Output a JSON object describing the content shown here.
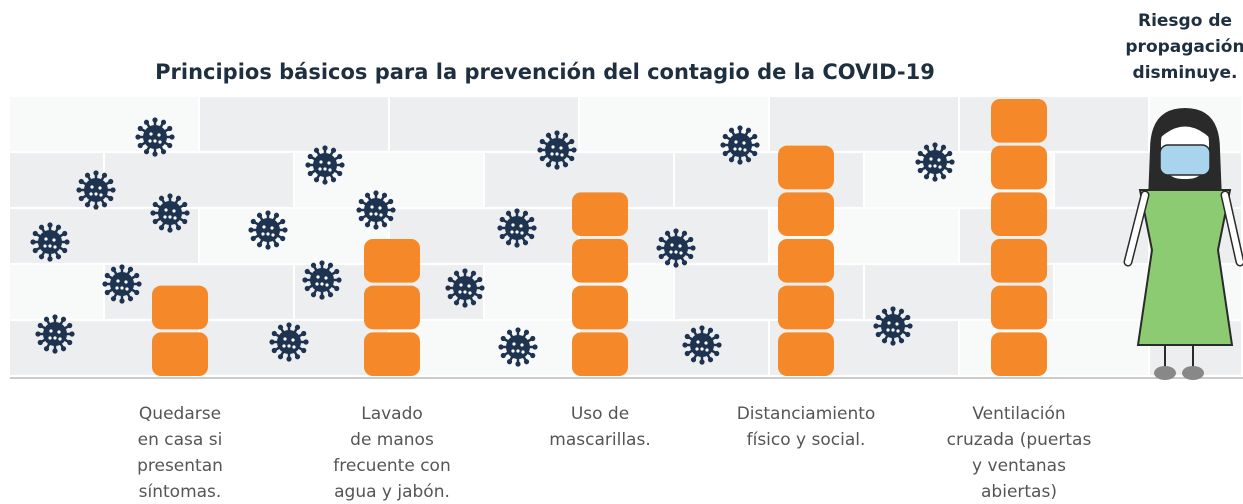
{
  "title": "Principios básicos para la prevención del contagio de la COVID-19",
  "side_note": [
    "Riesgo de",
    "propagación",
    "disminuye."
  ],
  "items": [
    {
      "label": [
        "Quedarse",
        "en casa si",
        "presentan",
        "síntomas."
      ],
      "blocks": 2
    },
    {
      "label": [
        "Lavado",
        "de manos",
        "frecuente con",
        "agua y jabón."
      ],
      "blocks": 3
    },
    {
      "label": [
        "Uso de",
        "mascarillas."
      ],
      "blocks": 4
    },
    {
      "label": [
        "Distanciamiento",
        "físico y social."
      ],
      "blocks": 5
    },
    {
      "label": [
        "Ventilación",
        "cruzada (puertas",
        "y ventanas",
        "abiertas)"
      ],
      "blocks": 6
    }
  ]
}
